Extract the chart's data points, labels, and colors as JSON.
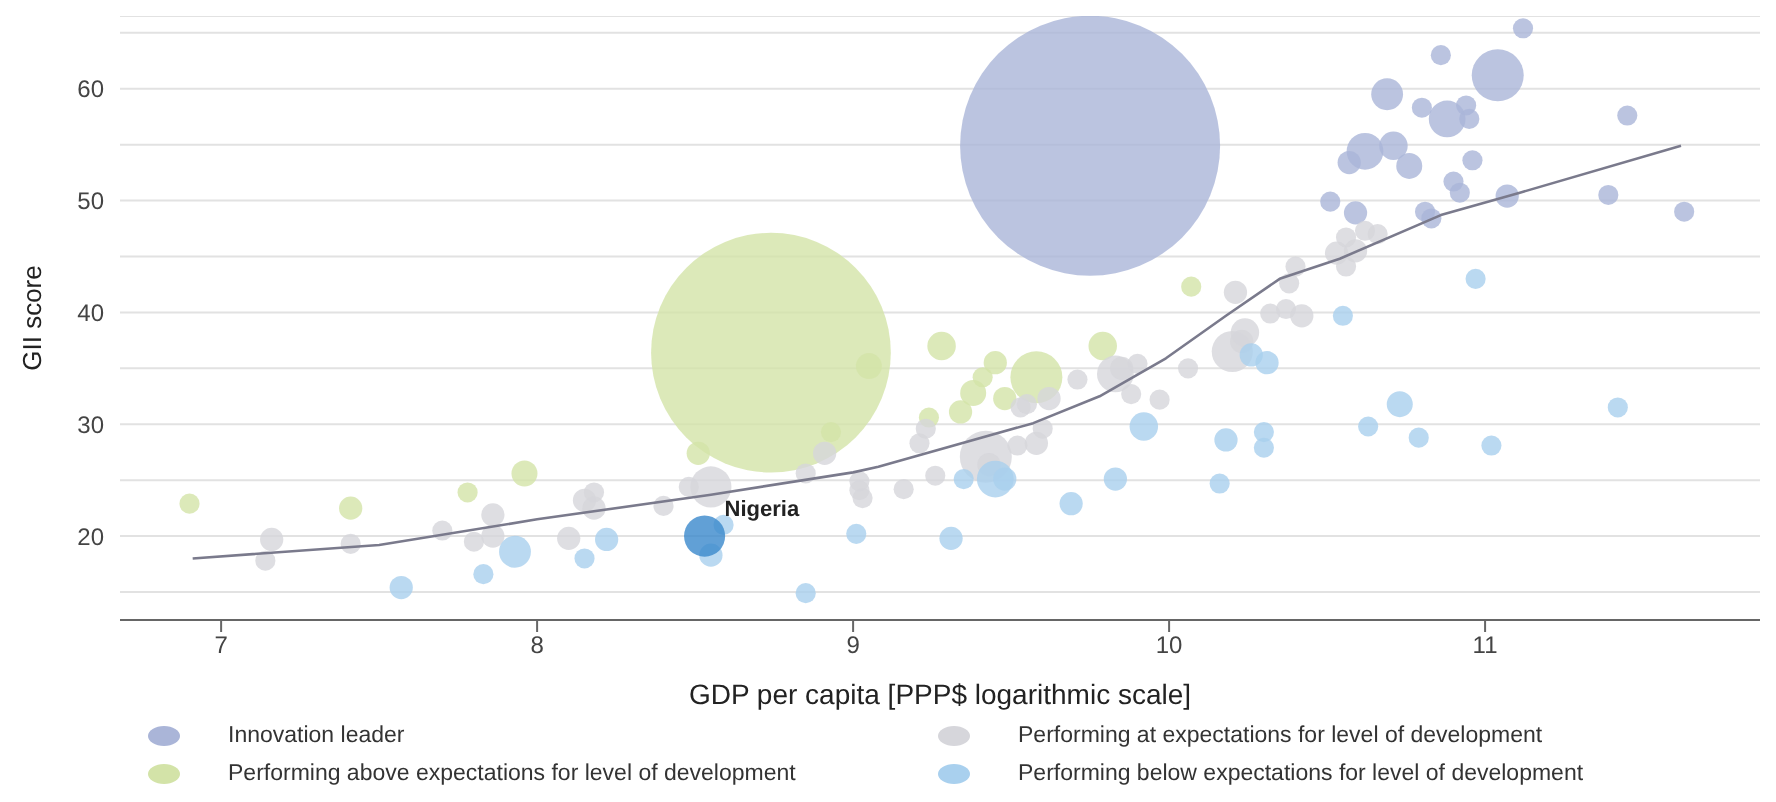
{
  "chart_data": {
    "type": "bubble",
    "xlabel": "GDP per capita [PPP$ logarithmic scale]",
    "ylabel": "GII score",
    "xlim": [
      6.68,
      11.87
    ],
    "xticks": [
      7,
      8,
      9,
      10,
      11
    ],
    "ylim": [
      12.5,
      66.5
    ],
    "yticks": [
      {
        "value": 15,
        "label": null
      },
      20,
      {
        "value": 25,
        "label": null
      },
      30,
      {
        "value": 35,
        "label": null
      },
      40,
      {
        "value": 45,
        "label": null
      },
      50,
      {
        "value": 55,
        "label": null
      },
      60,
      {
        "value": 65,
        "label": null
      }
    ],
    "grid": "y",
    "legend": "bottom",
    "marker": "circle",
    "annotations": [
      {
        "text": "Nigeria",
        "x": 8.53,
        "y": 20.0
      }
    ],
    "series": [
      {
        "name": "Innovation leader",
        "color": "#aab5d8",
        "x": [
          9.75,
          11.12,
          10.86,
          11.04,
          10.69,
          10.8,
          10.94,
          10.88,
          10.95,
          11.45,
          10.62,
          10.71,
          10.57,
          10.76,
          10.96,
          10.9,
          10.92,
          11.07,
          11.39,
          10.51,
          10.59,
          10.81,
          10.83,
          11.63
        ],
        "values": [
          54.9,
          65.4,
          63.0,
          61.2,
          59.5,
          58.3,
          58.5,
          57.3,
          57.3,
          57.6,
          54.4,
          54.9,
          53.4,
          53.1,
          53.6,
          51.7,
          50.7,
          50.4,
          50.5,
          49.9,
          48.9,
          49.0,
          48.4,
          49.0
        ],
        "sizes": [
          1,
          0.006,
          0.006,
          0.04,
          0.015,
          0.006,
          0.006,
          0.02,
          0.006,
          0.006,
          0.02,
          0.012,
          0.008,
          0.01,
          0.006,
          0.006,
          0.006,
          0.008,
          0.006,
          0.006,
          0.008,
          0.006,
          0.006,
          0.006
        ]
      },
      {
        "name": "Performing above expectations for level of development",
        "color": "#d3e3a8",
        "x": [
          8.74,
          6.9,
          7.41,
          7.78,
          7.96,
          8.51,
          8.93,
          9.05,
          9.28,
          9.45,
          9.41,
          9.58,
          9.79,
          9.38,
          9.48,
          9.34,
          9.24,
          10.07
        ],
        "values": [
          36.4,
          22.9,
          22.5,
          23.9,
          25.6,
          27.4,
          29.3,
          35.2,
          37.0,
          35.5,
          34.2,
          34.2,
          37.0,
          32.8,
          32.3,
          31.1,
          30.6,
          42.3
        ],
        "sizes": [
          0.85,
          0.006,
          0.008,
          0.006,
          0.01,
          0.008,
          0.006,
          0.01,
          0.012,
          0.008,
          0.006,
          0.04,
          0.012,
          0.01,
          0.008,
          0.008,
          0.006,
          0.006
        ]
      },
      {
        "name": "Performing at expectations for level of development",
        "color": "#d6d6db",
        "x": [
          7.16,
          7.14,
          7.41,
          7.7,
          7.8,
          7.86,
          7.86,
          8.1,
          8.15,
          8.18,
          8.18,
          8.4,
          8.55,
          8.48,
          8.85,
          8.91,
          9.02,
          9.02,
          9.03,
          9.16,
          9.21,
          9.23,
          9.26,
          9.42,
          9.43,
          9.52,
          9.58,
          9.6,
          9.53,
          9.55,
          9.62,
          9.71,
          9.83,
          9.85,
          9.9,
          9.88,
          9.97,
          10.06,
          10.2,
          10.23,
          10.24,
          10.32,
          10.37,
          10.42,
          10.21,
          10.38,
          10.4,
          10.56,
          10.56,
          10.62,
          10.66,
          10.53,
          10.59
        ],
        "values": [
          19.7,
          17.8,
          19.3,
          20.5,
          19.5,
          20.0,
          21.9,
          19.8,
          23.2,
          23.9,
          22.5,
          22.7,
          24.4,
          24.4,
          25.6,
          27.4,
          24.9,
          24.1,
          23.4,
          24.2,
          28.3,
          29.6,
          25.4,
          27.1,
          26.4,
          28.1,
          28.3,
          29.6,
          31.5,
          31.8,
          32.3,
          34.0,
          34.5,
          35.0,
          35.4,
          32.7,
          32.2,
          35.0,
          36.5,
          37.4,
          38.2,
          39.9,
          40.3,
          39.7,
          41.8,
          42.6,
          44.1,
          44.1,
          46.7,
          47.3,
          47.0,
          45.3,
          45.5
        ],
        "sizes": [
          0.008,
          0.006,
          0.006,
          0.006,
          0.006,
          0.008,
          0.008,
          0.008,
          0.008,
          0.006,
          0.008,
          0.006,
          0.025,
          0.006,
          0.006,
          0.008,
          0.006,
          0.006,
          0.006,
          0.006,
          0.006,
          0.006,
          0.006,
          0.04,
          0.008,
          0.006,
          0.008,
          0.006,
          0.006,
          0.006,
          0.008,
          0.006,
          0.02,
          0.008,
          0.006,
          0.006,
          0.006,
          0.006,
          0.025,
          0.008,
          0.012,
          0.006,
          0.006,
          0.008,
          0.008,
          0.006,
          0.006,
          0.006,
          0.006,
          0.006,
          0.006,
          0.008,
          0.008
        ]
      },
      {
        "name": "Performing below expectations for level of development",
        "color": "#a9d0ee",
        "colors": [
          "#a9d0ee",
          "#a9d0ee",
          "#a9d0ee",
          "#a9d0ee",
          "#a9d0ee",
          "#a9d0ee",
          "#a9d0ee",
          "#3a88cc",
          "#a9d0ee",
          "#a9d0ee",
          "#a9d0ee",
          "#a9d0ee",
          "#a9d0ee",
          "#a9d0ee",
          "#a9d0ee",
          "#a9d0ee",
          "#a9d0ee",
          "#a9d0ee",
          "#a9d0ee",
          "#a9d0ee",
          "#a9d0ee",
          "#a9d0ee",
          "#a9d0ee",
          "#a9d0ee",
          "#a9d0ee",
          "#a9d0ee",
          "#a9d0ee",
          "#a9d0ee",
          "#a9d0ee",
          "#a9d0ee"
        ],
        "x": [
          7.57,
          7.83,
          7.93,
          8.15,
          8.22,
          8.55,
          8.59,
          8.53,
          8.85,
          9.01,
          9.31,
          9.45,
          9.48,
          9.35,
          9.69,
          9.83,
          9.92,
          10.16,
          10.18,
          10.3,
          10.3,
          10.26,
          10.31,
          10.55,
          10.97,
          10.63,
          10.73,
          10.79,
          11.02,
          11.42
        ],
        "values": [
          15.4,
          16.6,
          18.6,
          18.0,
          19.7,
          18.3,
          21.0,
          20.0,
          14.9,
          20.2,
          19.8,
          25.1,
          25.1,
          25.1,
          22.9,
          25.1,
          29.8,
          24.7,
          28.6,
          29.3,
          27.9,
          36.2,
          35.5,
          39.7,
          43.0,
          29.8,
          31.8,
          28.8,
          28.1,
          31.5
        ],
        "sizes": [
          0.008,
          0.006,
          0.015,
          0.006,
          0.008,
          0.008,
          0.006,
          0.025,
          0.006,
          0.006,
          0.008,
          0.02,
          0.008,
          0.006,
          0.008,
          0.008,
          0.012,
          0.006,
          0.008,
          0.006,
          0.006,
          0.008,
          0.008,
          0.006,
          0.006,
          0.006,
          0.01,
          0.006,
          0.006,
          0.006
        ]
      },
      {
        "type": "line",
        "marker": "none",
        "color": "#7a7a8c",
        "x": [
          6.91,
          7.5,
          8.0,
          8.55,
          9.0,
          9.08,
          9.57,
          9.78,
          9.99,
          10.18,
          10.35,
          10.54,
          10.86,
          11.11,
          11.62
        ],
        "values": [
          18.0,
          19.2,
          21.5,
          23.7,
          25.7,
          26.2,
          30.1,
          32.5,
          35.9,
          39.7,
          43.0,
          44.8,
          48.7,
          50.7,
          54.9
        ]
      }
    ]
  }
}
